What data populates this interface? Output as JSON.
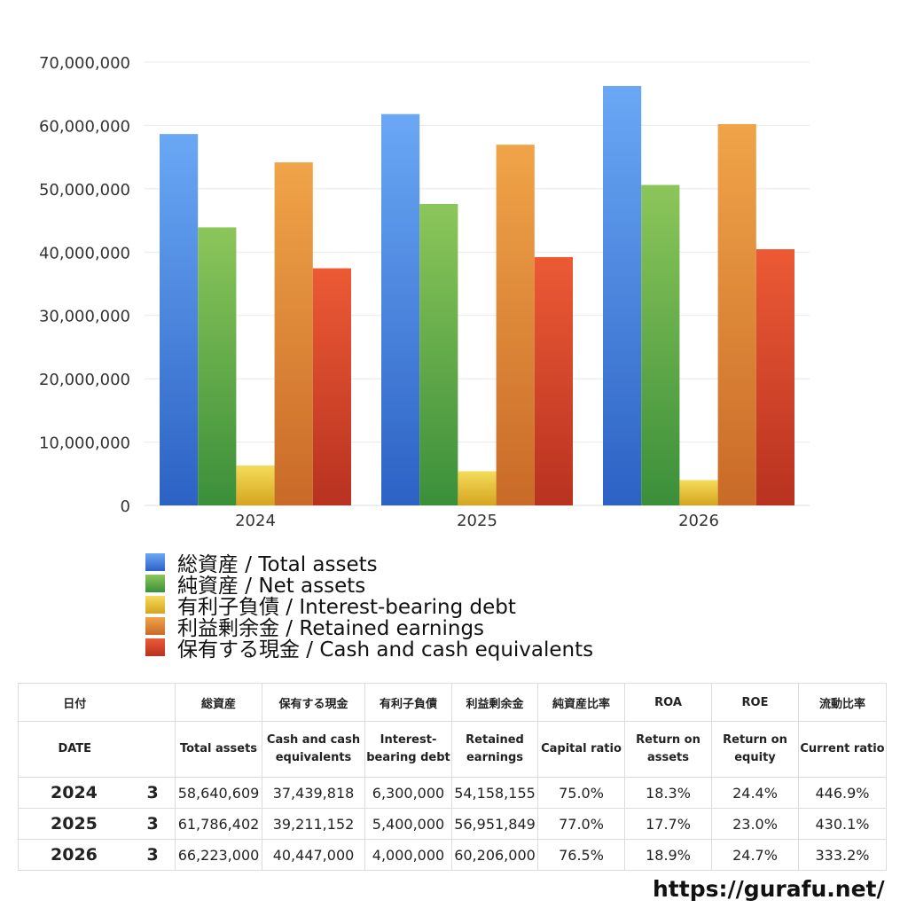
{
  "chart_data": {
    "type": "bar",
    "categories": [
      "2024",
      "2025",
      "2026"
    ],
    "ylim": [
      0,
      70000000
    ],
    "yticks": [
      "0",
      "10,000,000",
      "20,000,000",
      "30,000,000",
      "40,000,000",
      "50,000,000",
      "60,000,000",
      "70,000,000"
    ],
    "ytick_values": [
      0,
      10000000,
      20000000,
      30000000,
      40000000,
      50000000,
      60000000,
      70000000
    ],
    "grid": true,
    "legend_position": "bottom",
    "series": [
      {
        "name": "総資産 / Total assets",
        "values": [
          58640609,
          61786402,
          66223000
        ],
        "color_top": "#6aa8f5",
        "color_bottom": "#2c62c4"
      },
      {
        "name": "純資産 / Net assets",
        "values": [
          43900000,
          47600000,
          50600000
        ],
        "color_top": "#8cc65a",
        "color_bottom": "#3b8f3a"
      },
      {
        "name": "有利子負債 / Interest-bearing debt",
        "values": [
          6300000,
          5400000,
          4000000
        ],
        "color_top": "#f5dc5a",
        "color_bottom": "#d4a520"
      },
      {
        "name": "利益剰余金 / Retained earnings",
        "values": [
          54158155,
          56951849,
          60206000
        ],
        "color_top": "#f0a448",
        "color_bottom": "#c96a28"
      },
      {
        "name": "保有する現金 /  Cash and cash equivalents",
        "values": [
          37439818,
          39211152,
          40447000
        ],
        "color_top": "#ec5a35",
        "color_bottom": "#b83220"
      }
    ]
  },
  "table": {
    "headers_jp": [
      "日付",
      "",
      "総資産",
      "保有する現金",
      "有利子負債",
      "利益剰余金",
      "純資産比率",
      "ROA",
      "ROE",
      "流動比率"
    ],
    "headers_en": [
      "DATE",
      "",
      "Total assets",
      "Cash and cash equivalents",
      "Interest-bearing debt",
      "Retained earnings",
      "Capital ratio",
      "Return on assets",
      "Return on equity",
      "Current ratio"
    ],
    "rows": [
      [
        "2024",
        "3",
        "58,640,609",
        "37,439,818",
        "6,300,000",
        "54,158,155",
        "75.0%",
        "18.3%",
        "24.4%",
        "446.9%"
      ],
      [
        "2025",
        "3",
        "61,786,402",
        "39,211,152",
        "5,400,000",
        "56,951,849",
        "77.0%",
        "17.7%",
        "23.0%",
        "430.1%"
      ],
      [
        "2026",
        "3",
        "66,223,000",
        "40,447,000",
        "4,000,000",
        "60,206,000",
        "76.5%",
        "18.9%",
        "24.7%",
        "333.2%"
      ]
    ]
  },
  "footer": {
    "url": "https://gurafu.net/"
  }
}
